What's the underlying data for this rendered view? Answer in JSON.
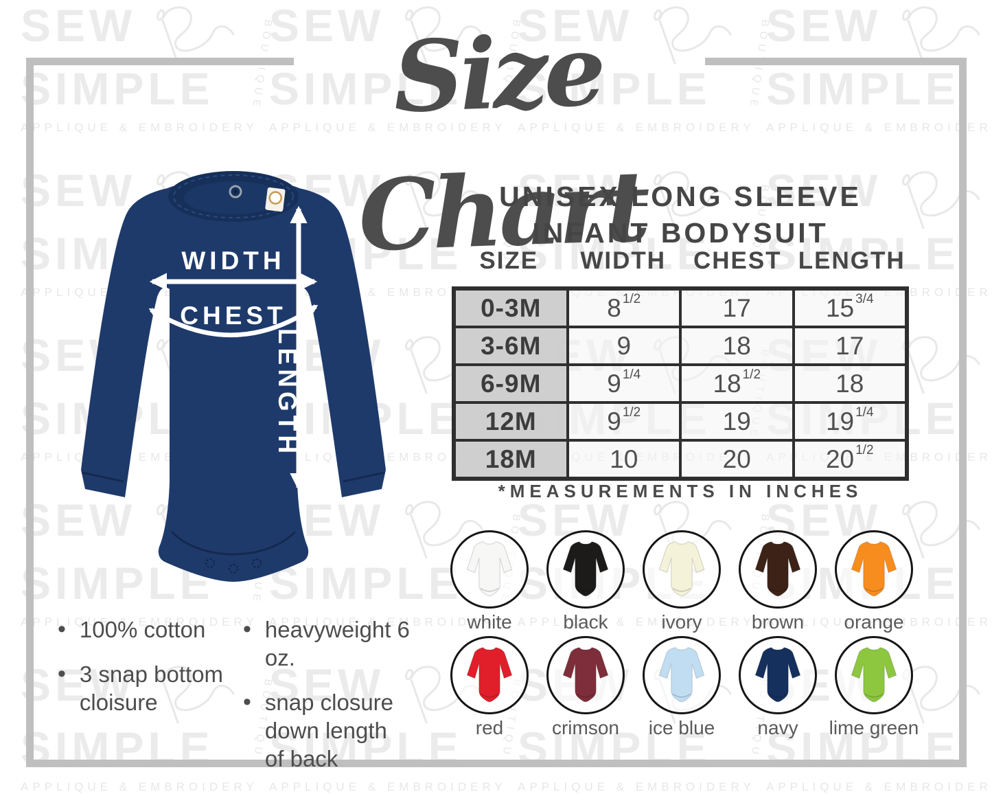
{
  "title": "Size Chart",
  "watermark": {
    "word1": "SEW",
    "word2": "SIMPLE",
    "tagline": "APPLIQUE & EMBROIDERY",
    "vertical": "BOUTIQUE"
  },
  "product_heading": {
    "line1": "UNISEX LONG SLEEVE",
    "line2": "INFANT BODYSUIT"
  },
  "diagram": {
    "width_label": "WIDTH",
    "chest_label": "CHEST",
    "length_label": "LENGTH",
    "garment_color": "#1e3a6b"
  },
  "size_table": {
    "columns": [
      "SIZE",
      "WIDTH",
      "CHEST",
      "LENGTH"
    ],
    "rows": [
      {
        "size": "0-3M",
        "width": "8|1/2",
        "chest": "17",
        "length": "15|3/4"
      },
      {
        "size": "3-6M",
        "width": "9",
        "chest": "18",
        "length": "17"
      },
      {
        "size": "6-9M",
        "width": "9|1/4",
        "chest": "18|1/2",
        "length": "18"
      },
      {
        "size": "12M",
        "width": "9|1/2",
        "chest": "19",
        "length": "19|1/4"
      },
      {
        "size": "18M",
        "width": "10",
        "chest": "20",
        "length": "20|1/2"
      }
    ],
    "note": "*MEASUREMENTS IN INCHES"
  },
  "features": {
    "column1": [
      "100% cotton",
      "3 snap bottom\ncloisure"
    ],
    "column2": [
      "heavyweight 6 oz.",
      "snap closure\ndown length\nof back"
    ]
  },
  "colors": [
    {
      "name": "white",
      "hex": "#f7f7f5"
    },
    {
      "name": "black",
      "hex": "#1d1b1a"
    },
    {
      "name": "ivory",
      "hex": "#f4f2d8"
    },
    {
      "name": "brown",
      "hex": "#3d2218"
    },
    {
      "name": "orange",
      "hex": "#f78d1f"
    },
    {
      "name": "red",
      "hex": "#e01f2a"
    },
    {
      "name": "crimson",
      "hex": "#7d2e3a"
    },
    {
      "name": "ice blue",
      "hex": "#c0ddf2"
    },
    {
      "name": "navy",
      "hex": "#16305d"
    },
    {
      "name": "lime green",
      "hex": "#8dc63f"
    }
  ]
}
